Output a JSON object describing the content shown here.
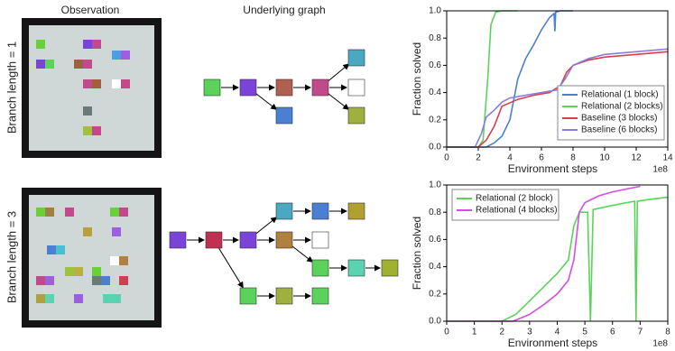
{
  "labels": {
    "observation": "Observation",
    "graph": "Underlying graph",
    "rows": [
      "Branch length = 1",
      "Branch length = 3"
    ]
  },
  "chart_data": [
    {
      "type": "line",
      "ylabel": "Fraction solved",
      "xlabel": "Environment steps",
      "xscale_note": "1e8",
      "xlim": [
        0,
        14
      ],
      "ylim": [
        0,
        1
      ],
      "xticks": [
        0,
        2,
        4,
        6,
        8,
        10,
        12,
        14
      ],
      "yticks": [
        {
          "value": 0,
          "label": "0.0"
        },
        {
          "value": 0.2,
          "label": "0.2"
        },
        {
          "value": 0.4,
          "label": "0.4"
        },
        {
          "value": 0.6,
          "label": "0.6"
        },
        {
          "value": 0.8,
          "label": "0.8"
        },
        {
          "value": 1,
          "label": "1.0"
        }
      ],
      "legend": "lower right",
      "series": [
        {
          "name": "Relational (1 block)",
          "color": "#4a7fd4",
          "x": [
            0,
            2.5,
            3,
            3.5,
            4,
            4.5,
            5,
            5.5,
            6,
            6.5,
            6.8,
            6.85,
            6.9,
            7.2,
            7.5,
            8
          ],
          "values": [
            0,
            0,
            0.03,
            0.08,
            0.2,
            0.5,
            0.65,
            0.75,
            0.86,
            0.95,
            0.98,
            0.85,
            0.99,
            1,
            1,
            1
          ]
        },
        {
          "name": "Relational (2 blocks)",
          "color": "#5bd35b",
          "x": [
            0,
            2,
            2.3,
            2.6,
            2.8,
            3.1,
            3.5,
            4.5
          ],
          "values": [
            0,
            0,
            0.05,
            0.5,
            0.9,
            0.99,
            1,
            1
          ]
        },
        {
          "name": "Baseline (3 blocks)",
          "color": "#d6404a",
          "x": [
            0,
            2,
            2.5,
            3,
            3.5,
            4.5,
            5.5,
            6.5,
            7.2,
            7.6,
            8,
            9,
            10,
            12,
            14
          ],
          "values": [
            0,
            0,
            0.05,
            0.15,
            0.3,
            0.35,
            0.38,
            0.4,
            0.45,
            0.55,
            0.6,
            0.64,
            0.66,
            0.68,
            0.7
          ]
        },
        {
          "name": "Baseline (6 blocks)",
          "color": "#8c7ce0",
          "x": [
            0,
            1.8,
            2.2,
            2.5,
            3,
            3.5,
            4,
            5,
            6,
            7,
            7.5,
            8,
            9,
            10,
            12,
            14
          ],
          "values": [
            0,
            0,
            0.1,
            0.22,
            0.27,
            0.33,
            0.36,
            0.38,
            0.4,
            0.42,
            0.5,
            0.6,
            0.65,
            0.68,
            0.7,
            0.72
          ]
        }
      ]
    },
    {
      "type": "line",
      "ylabel": "Fraction solved",
      "xlabel": "Environment steps",
      "xscale_note": "1e8",
      "xlim": [
        0,
        8
      ],
      "ylim": [
        0,
        1
      ],
      "xticks": [
        0,
        1,
        2,
        3,
        4,
        5,
        6,
        7,
        8
      ],
      "yticks": [
        {
          "value": 0,
          "label": "0.0"
        },
        {
          "value": 0.2,
          "label": "0.2"
        },
        {
          "value": 0.4,
          "label": "0.4"
        },
        {
          "value": 0.6,
          "label": "0.6"
        },
        {
          "value": 0.8,
          "label": "0.8"
        },
        {
          "value": 1,
          "label": "1.0"
        }
      ],
      "legend": "upper left",
      "series": [
        {
          "name": "Relational (2 block)",
          "color": "#5bd35b",
          "x": [
            0,
            2,
            2.5,
            3,
            3.5,
            4,
            4.4,
            4.6,
            4.8,
            5.1,
            5.2,
            5.3,
            6,
            6.5,
            6.8,
            6.85,
            6.9,
            7.2,
            8
          ],
          "values": [
            0,
            0,
            0.05,
            0.15,
            0.25,
            0.35,
            0.45,
            0.7,
            0.8,
            0.8,
            0,
            0.82,
            0.85,
            0.87,
            0.88,
            0,
            0.88,
            0.89,
            0.91
          ]
        },
        {
          "name": "Relational (4 blocks)",
          "color": "#d44ee0",
          "x": [
            0,
            2.4,
            3,
            3.5,
            4,
            4.4,
            4.6,
            4.8,
            5,
            5.5,
            6,
            6.5,
            7
          ],
          "values": [
            0,
            0,
            0.05,
            0.12,
            0.2,
            0.3,
            0.45,
            0.8,
            0.87,
            0.92,
            0.95,
            0.97,
            0.99
          ]
        }
      ]
    }
  ]
}
